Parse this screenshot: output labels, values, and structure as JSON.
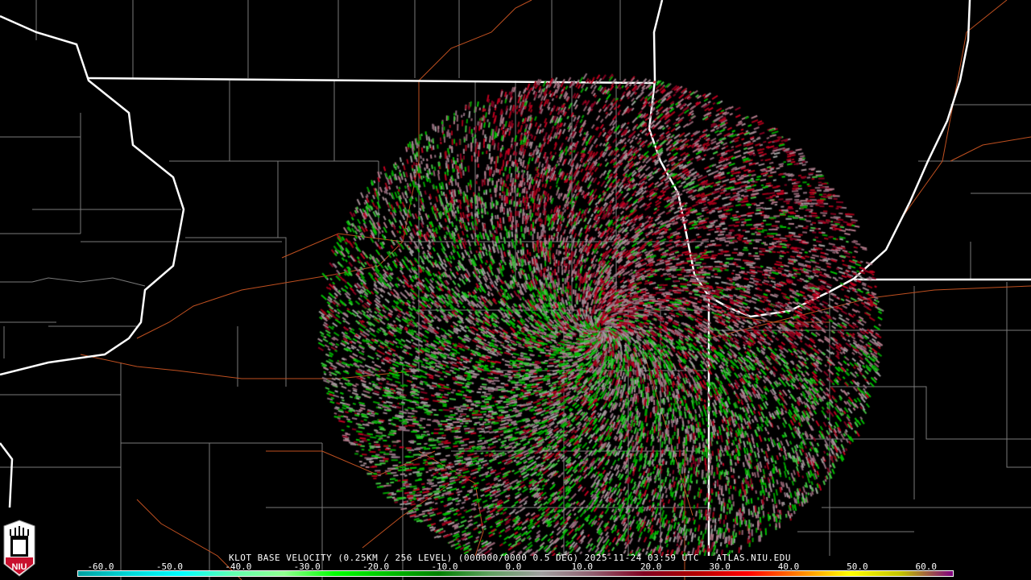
{
  "product_title": "KLOT BASE VELOCITY (0.25KM / 256 LEVEL) (000000/0000 0.5 DEG) 2025-11-24 03:59 UTC   ATLAS.NIU.EDU",
  "logo": {
    "text": "NIU",
    "icon": "niu-logo"
  },
  "colorbar": {
    "unit_range": [
      -60,
      60
    ],
    "labels": [
      "-60.0",
      "-50.0",
      "-40.0",
      "-30.0",
      "-20.0",
      "-10.0",
      "0.0",
      "10.0",
      "20.0",
      "30.0",
      "40.0",
      "50.0",
      "60.0"
    ],
    "colors": [
      "#00a0a0",
      "#00d8d8",
      "#00ffff",
      "#60ffb0",
      "#90ff90",
      "#00ff00",
      "#00c000",
      "#008000",
      "#60a060",
      "#a0a0a0",
      "#906070",
      "#800020",
      "#b00000",
      "#ff0000",
      "#ff8000",
      "#ffff00",
      "#c0c000",
      "#800080"
    ]
  },
  "colors": {
    "positive": "#b00020",
    "negative": "#00c000",
    "near_zero": "#a08890",
    "state_border": "#ffffff",
    "county_border": "#808080",
    "highway": "#c05020"
  }
}
